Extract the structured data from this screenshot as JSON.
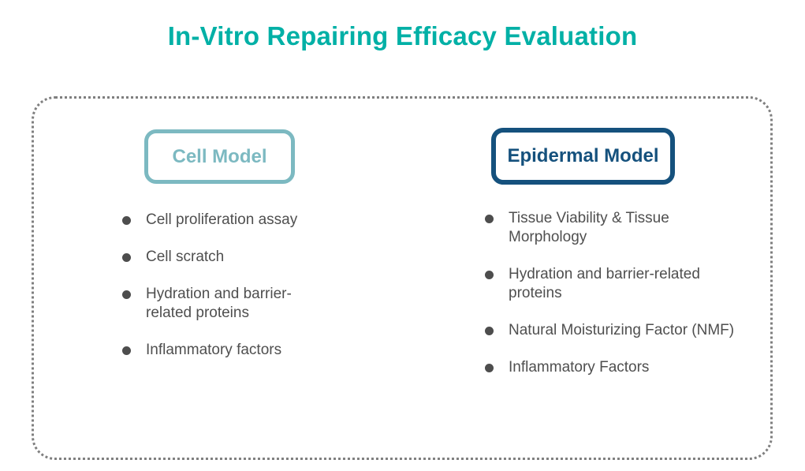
{
  "title": "In-Vitro Repairing Efficacy Evaluation",
  "colors": {
    "title_teal": "#00B0A6",
    "cell_model_accent": "#7CB9C1",
    "epidermal_model_accent": "#15517D",
    "body_text_gray": "#4F4F4F",
    "dotted_border_gray": "#7F7F7F"
  },
  "panel": {
    "columns": [
      {
        "header": "Cell Model",
        "items": [
          "Cell proliferation assay",
          "Cell scratch",
          "Hydration and barrier-related proteins",
          "Inflammatory factors"
        ]
      },
      {
        "header": "Epidermal Model",
        "items": [
          "Tissue Viability & Tissue Morphology",
          "Hydration and barrier-related proteins",
          "Natural Moisturizing Factor (NMF)",
          "Inflammatory Factors"
        ]
      }
    ]
  }
}
